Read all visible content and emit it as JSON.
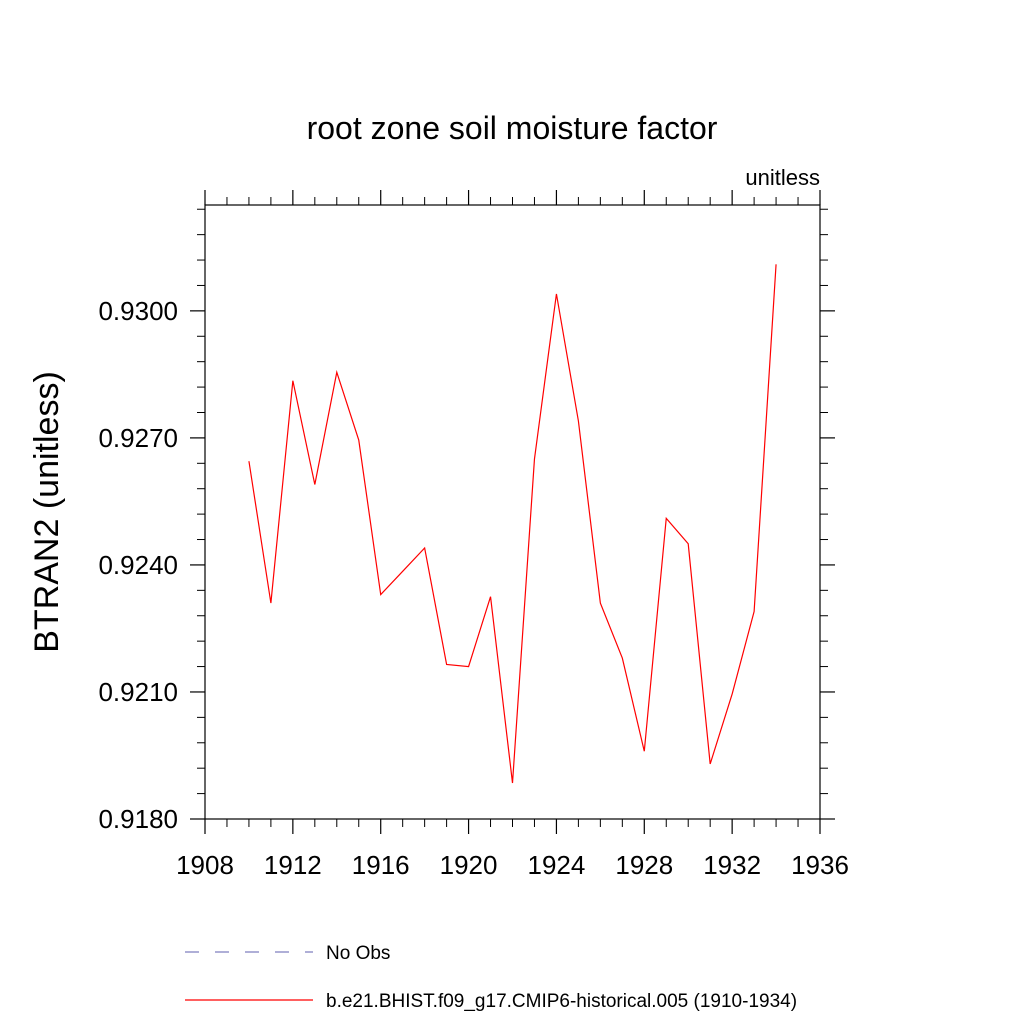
{
  "chart_data": {
    "type": "line",
    "title": "root zone soil moisture factor",
    "units_label": "unitless",
    "ylabel": "BTRAN2  (unitless)",
    "xlabel": "",
    "xlim": [
      1908,
      1936
    ],
    "ylim": [
      0.918,
      0.9325
    ],
    "x_ticks": [
      1908,
      1912,
      1916,
      1920,
      1924,
      1928,
      1932,
      1936
    ],
    "x_tick_labels": [
      "1908",
      "1912",
      "1916",
      "1920",
      "1924",
      "1928",
      "1932",
      "1936"
    ],
    "y_ticks": [
      0.918,
      0.921,
      0.924,
      0.927,
      0.93
    ],
    "y_tick_labels": [
      "0.9180",
      "0.9210",
      "0.9240",
      "0.9270",
      "0.9300"
    ],
    "grid": false,
    "legend_position": "bottom",
    "series": [
      {
        "name": "b.e21.BHIST.f09_g17.CMIP6-historical.005 (1910-1934)",
        "color": "#ff0000",
        "style": "solid",
        "x": [
          1910,
          1911,
          1912,
          1913,
          1914,
          1915,
          1916,
          1917,
          1918,
          1919,
          1920,
          1921,
          1922,
          1923,
          1924,
          1925,
          1926,
          1927,
          1928,
          1929,
          1930,
          1931,
          1932,
          1933,
          1934
        ],
        "y": [
          0.92645,
          0.9231,
          0.92835,
          0.9259,
          0.92855,
          0.92695,
          0.9233,
          0.92385,
          0.9244,
          0.92165,
          0.9216,
          0.92325,
          0.91885,
          0.9265,
          0.9304,
          0.9274,
          0.9231,
          0.9218,
          0.9196,
          0.9251,
          0.9245,
          0.9193,
          0.92095,
          0.9229,
          0.9311
        ]
      }
    ],
    "legend": [
      {
        "label": "No Obs",
        "color": "#7f7fbf",
        "style": "dashed"
      },
      {
        "label": "b.e21.BHIST.f09_g17.CMIP6-historical.005 (1910-1934)",
        "color": "#ff0000",
        "style": "solid"
      }
    ]
  }
}
